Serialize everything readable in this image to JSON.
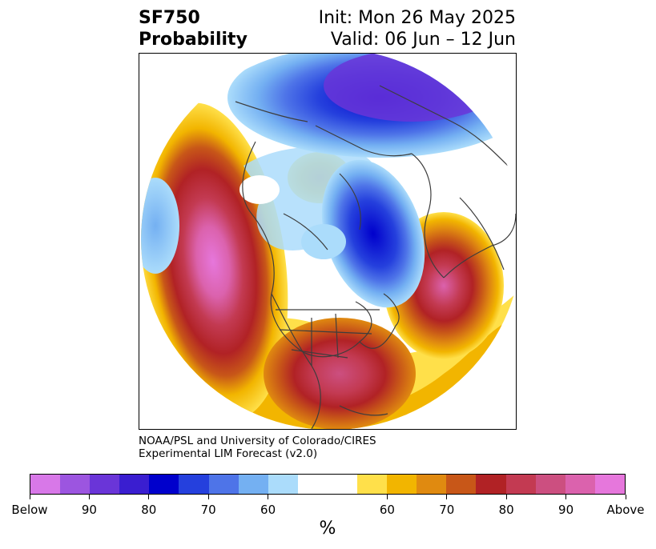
{
  "header": {
    "title_line1": "SF750",
    "title_line2": "Probability",
    "init": "Init: Mon 26 May 2025",
    "valid": "Valid: 06 Jun – 12 Jun"
  },
  "credit": {
    "line1": "NOAA/PSL and University of Colorado/CIRES",
    "line2": "Experimental LIM Forecast (v2.0)"
  },
  "colorbar": {
    "units": "%",
    "colors": [
      "#d878e8",
      "#9c55e0",
      "#6a35d8",
      "#3a1ed0",
      "#0000cc",
      "#2540dd",
      "#4e74e8",
      "#74b0f2",
      "#abdcfb",
      "#ffffff",
      "#ffe04a",
      "#f2b500",
      "#e08a10",
      "#c85718",
      "#b12225",
      "#c33a52",
      "#cc4f80",
      "#db62ad",
      "#e677dc"
    ],
    "labels": [
      "Below",
      "90",
      "80",
      "70",
      "60",
      "60",
      "70",
      "80",
      "90",
      "Above"
    ]
  }
}
